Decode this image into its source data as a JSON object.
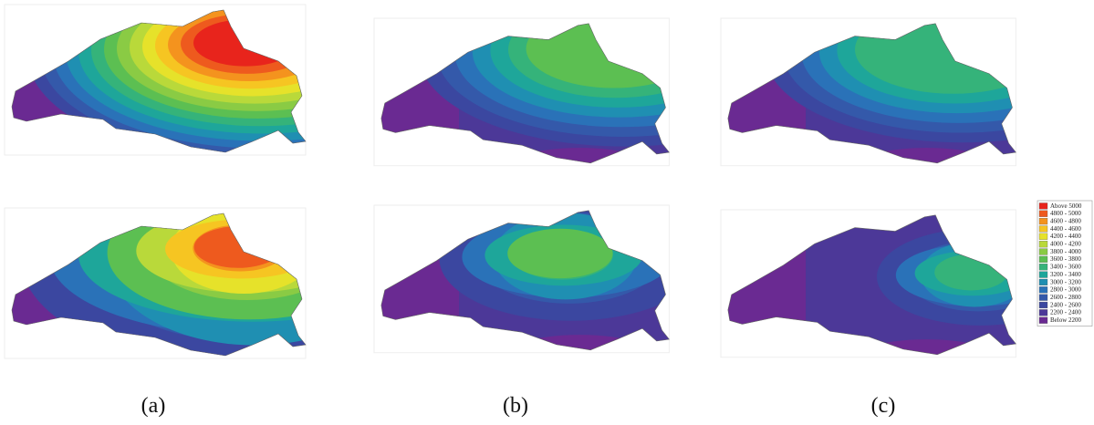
{
  "panels": [
    {
      "label": "(a)"
    },
    {
      "label": "(b)"
    },
    {
      "label": "(c)"
    }
  ],
  "legend": {
    "items": [
      {
        "label": "Above 5000",
        "color": "#e8241c"
      },
      {
        "label": "4800 - 5000",
        "color": "#ee5a1e"
      },
      {
        "label": "4600 - 4800",
        "color": "#f4931e"
      },
      {
        "label": "4400 - 4600",
        "color": "#f6c522"
      },
      {
        "label": "4200 - 4400",
        "color": "#e6e22a"
      },
      {
        "label": "4000 - 4200",
        "color": "#b9d93a"
      },
      {
        "label": "3800 - 4000",
        "color": "#8acb44"
      },
      {
        "label": "3600 - 3800",
        "color": "#5cbf52"
      },
      {
        "label": "3400 - 3600",
        "color": "#35b37a"
      },
      {
        "label": "3200 - 3400",
        "color": "#1ea69a"
      },
      {
        "label": "3000 - 3200",
        "color": "#1f8fb2"
      },
      {
        "label": "2800 - 3000",
        "color": "#2a72b8"
      },
      {
        "label": "2600 - 2800",
        "color": "#3459aa"
      },
      {
        "label": "2400 - 2600",
        "color": "#3b47a0"
      },
      {
        "label": "2200 - 2400",
        "color": "#4c3898"
      },
      {
        "label": "Below 2200",
        "color": "#6a2a92"
      }
    ]
  }
}
